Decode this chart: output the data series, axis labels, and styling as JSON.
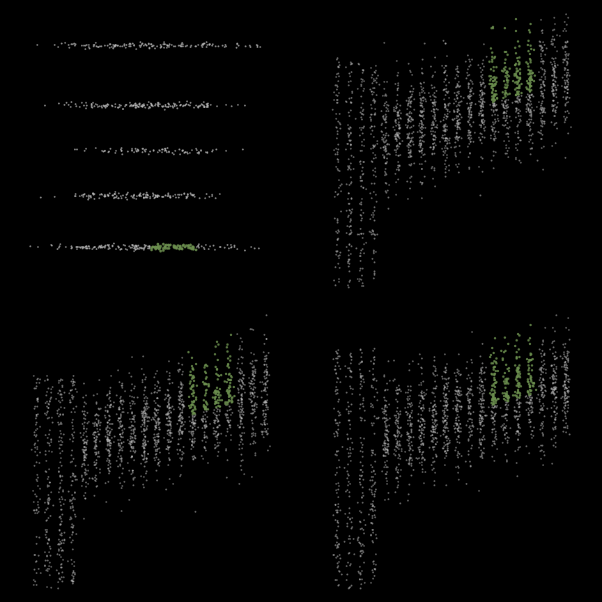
{
  "background_color": "#000000",
  "gray_color": "#C0C0C0",
  "green_color": "#6B8E4E",
  "n_points": 2000,
  "seed": 42,
  "figsize": [
    8.64,
    8.64
  ],
  "dpi": 100
}
